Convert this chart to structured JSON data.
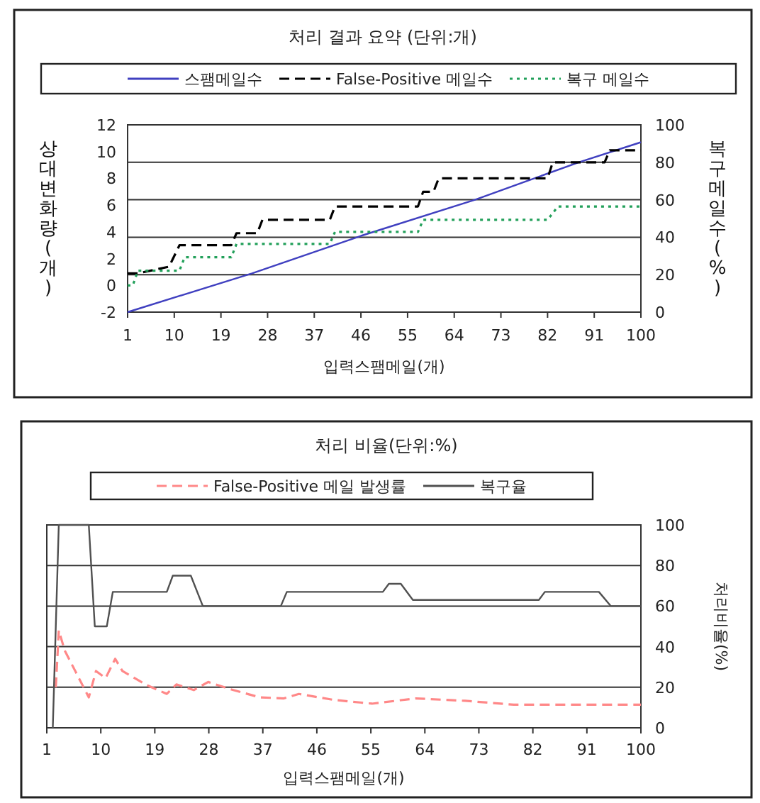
{
  "chart_data": [
    {
      "type": "line",
      "title": "처리 결과 요약 (단위:개)",
      "xlabel": "입력스팸메일(개)",
      "ylabel": "상대변화량(개)",
      "y2label": "복구메일수(%)",
      "legend": "top",
      "grid": "y2",
      "xlim": [
        1,
        100
      ],
      "xticks": [
        1,
        10,
        19,
        28,
        37,
        46,
        55,
        64,
        73,
        82,
        91,
        100
      ],
      "ylim": [
        -2,
        12
      ],
      "yticks": [
        -2,
        0,
        2,
        4,
        6,
        8,
        10,
        12
      ],
      "y2lim": [
        0,
        100
      ],
      "y2ticks": [
        0,
        20,
        40,
        60,
        80,
        100
      ],
      "series": [
        {
          "name": "스팸메일수",
          "color": "#4040c0",
          "line_style": "solid",
          "x": [
            1,
            25,
            46,
            68,
            88,
            100
          ],
          "values": [
            -2,
            0.9,
            3.7,
            6.4,
            9.2,
            10.7
          ]
        },
        {
          "name": "False-Positive 메일수",
          "color": "#000000",
          "line_style": "dashed",
          "x": [
            1,
            3,
            9,
            11,
            21,
            22,
            26,
            27,
            40,
            41,
            57,
            58,
            60,
            61,
            82,
            83,
            93,
            94,
            100
          ],
          "values": [
            0.9,
            0.9,
            1.4,
            3.0,
            3.0,
            3.9,
            3.9,
            4.9,
            4.9,
            5.9,
            5.9,
            7.0,
            7.0,
            8.0,
            8.0,
            9.2,
            9.2,
            10.1,
            10.1
          ]
        },
        {
          "name": "복구 메일수",
          "color": "#22a05a",
          "line_style": "dotted",
          "x": [
            1,
            2,
            3,
            11,
            12,
            21,
            22,
            40,
            41,
            57,
            58,
            82,
            84,
            100
          ],
          "values": [
            0,
            0,
            1.1,
            1.1,
            2.1,
            2.1,
            3.1,
            3.1,
            4.0,
            4.0,
            4.9,
            4.9,
            5.9,
            5.9
          ]
        }
      ]
    },
    {
      "type": "line",
      "title": "처리 비율(단위:%)",
      "xlabel": "입력스팸메일(개)",
      "y2label": "처리비율(%)",
      "legend": "top",
      "grid": "y2",
      "xlim": [
        1,
        100
      ],
      "xticks": [
        1,
        10,
        19,
        28,
        37,
        46,
        55,
        64,
        73,
        82,
        91,
        100
      ],
      "y2lim": [
        0,
        100
      ],
      "y2ticks": [
        0,
        20,
        40,
        60,
        80,
        100
      ],
      "series": [
        {
          "name": "False-Positive 메일 발생률",
          "color": "#ff8888",
          "line_style": "dashed",
          "axis": "y2",
          "x": [
            2.5,
            3,
            4,
            8,
            9.2,
            10.8,
            12.4,
            13.6,
            17.7,
            21,
            22.6,
            25.5,
            27.9,
            31.6,
            36.5,
            40.5,
            43,
            48.7,
            55.2,
            62.5,
            70.7,
            78.8,
            100
          ],
          "values": [
            20,
            48,
            38,
            15,
            28,
            24.5,
            34,
            28,
            21,
            16.7,
            21.4,
            18.6,
            22.6,
            19,
            15,
            14.5,
            16.7,
            13.8,
            11.9,
            14.5,
            13.3,
            11.4,
            11.4
          ]
        },
        {
          "name": "복구율",
          "color": "#505050",
          "line_style": "solid",
          "axis": "y2",
          "x": [
            2,
            3,
            8,
            9,
            11,
            12,
            21,
            22,
            25,
            27,
            40,
            41,
            57,
            58,
            60,
            62,
            83,
            84,
            93,
            95,
            100
          ],
          "values": [
            0,
            100,
            100,
            50,
            50,
            67,
            67,
            75,
            75,
            60,
            60,
            67,
            67,
            71,
            71,
            63,
            63,
            67,
            67,
            60,
            60
          ]
        }
      ]
    }
  ]
}
